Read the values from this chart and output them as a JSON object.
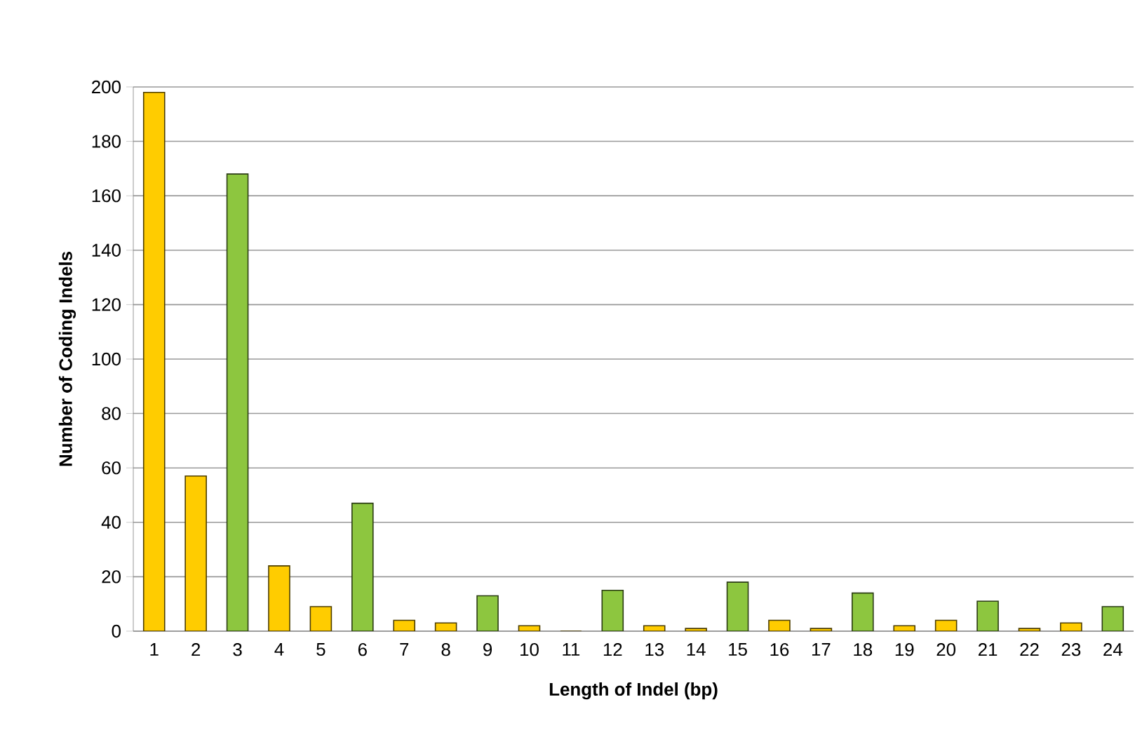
{
  "chart_data": {
    "type": "bar",
    "xlabel": "Length of Indel (bp)",
    "ylabel": "Number of Coding Indels",
    "categories": [
      "1",
      "2",
      "3",
      "4",
      "5",
      "6",
      "7",
      "8",
      "9",
      "10",
      "11",
      "12",
      "13",
      "14",
      "15",
      "16",
      "17",
      "18",
      "19",
      "20",
      "21",
      "22",
      "23",
      "24"
    ],
    "values": [
      198,
      57,
      168,
      24,
      9,
      47,
      4,
      3,
      13,
      2,
      0,
      15,
      2,
      1,
      18,
      4,
      1,
      14,
      2,
      4,
      11,
      1,
      3,
      9
    ],
    "colors": [
      "#ffcc00",
      "#ffcc00",
      "#8dc63f",
      "#ffcc00",
      "#ffcc00",
      "#8dc63f",
      "#ffcc00",
      "#ffcc00",
      "#8dc63f",
      "#ffcc00",
      "#ffcc00",
      "#8dc63f",
      "#ffcc00",
      "#ffcc00",
      "#8dc63f",
      "#ffcc00",
      "#ffcc00",
      "#8dc63f",
      "#ffcc00",
      "#ffcc00",
      "#8dc63f",
      "#ffcc00",
      "#ffcc00",
      "#8dc63f"
    ],
    "ylim": [
      0,
      200
    ],
    "yticks": [
      0,
      20,
      40,
      60,
      80,
      100,
      120,
      140,
      160,
      180,
      200
    ],
    "grid": "y"
  }
}
